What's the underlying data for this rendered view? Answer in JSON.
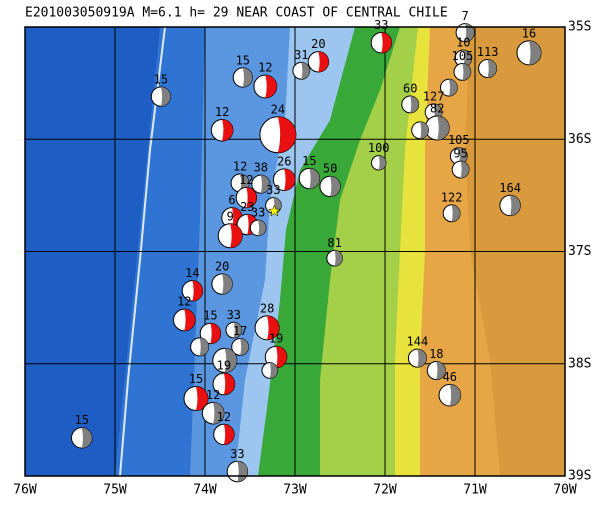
{
  "title": "E201003050919A M=6.1 h= 29 NEAR COAST OF CENTRAL CHILE",
  "map": {
    "xlim": [
      -76,
      -70
    ],
    "ylim": [
      -39,
      -35
    ],
    "xticks": [
      {
        "value": -76,
        "label": "76W"
      },
      {
        "value": -75,
        "label": "75W"
      },
      {
        "value": -74,
        "label": "74W"
      },
      {
        "value": -73,
        "label": "73W"
      },
      {
        "value": -72,
        "label": "72W"
      },
      {
        "value": -71,
        "label": "71W"
      },
      {
        "value": -70,
        "label": "70W"
      }
    ],
    "yticks": [
      {
        "value": -35,
        "label": "35S"
      },
      {
        "value": -36,
        "label": "36S"
      },
      {
        "value": -37,
        "label": "37S"
      },
      {
        "value": -38,
        "label": "38S"
      },
      {
        "value": -39,
        "label": "39S"
      }
    ],
    "grid": true,
    "epicenter": {
      "lon": -73.23,
      "lat": -36.64,
      "color": "#ffff00"
    },
    "events": [
      {
        "lon": -75.37,
        "lat": -38.66,
        "depth": 15,
        "mag": 5.7,
        "color": "#808080"
      },
      {
        "lon": -74.49,
        "lat": -35.62,
        "depth": 15,
        "mag": 5.6,
        "color": "#808080"
      },
      {
        "lon": -73.58,
        "lat": -35.45,
        "depth": 15,
        "mag": 5.6,
        "color": "#808080"
      },
      {
        "lon": -73.33,
        "lat": -35.53,
        "depth": 12,
        "mag": 5.9,
        "color": "#e81010"
      },
      {
        "lon": -72.93,
        "lat": -35.39,
        "depth": 31,
        "mag": 5.4,
        "color": "#808080"
      },
      {
        "lon": -72.74,
        "lat": -35.31,
        "depth": 20,
        "mag": 5.7,
        "color": "#e81010"
      },
      {
        "lon": -72.04,
        "lat": -35.14,
        "depth": 33,
        "mag": 5.7,
        "color": "#e81010"
      },
      {
        "lon": -71.11,
        "lat": -35.05,
        "depth": 7,
        "mag": 5.5,
        "color": "#808080"
      },
      {
        "lon": -70.4,
        "lat": -35.23,
        "depth": 16,
        "mag": 6.0,
        "color": "#808080"
      },
      {
        "lon": -70.86,
        "lat": -35.37,
        "depth": 113,
        "mag": 5.5,
        "color": "#808080"
      },
      {
        "lon": -71.13,
        "lat": -35.28,
        "depth": 10,
        "mag": 5.4,
        "color": "#808080"
      },
      {
        "lon": -71.14,
        "lat": -35.4,
        "depth": 105,
        "mag": 5.4,
        "color": "#808080"
      },
      {
        "lon": -71.29,
        "lat": -35.54,
        "depth": null,
        "mag": 5.4,
        "color": "#808080"
      },
      {
        "lon": -73.81,
        "lat": -35.92,
        "depth": 12,
        "mag": 5.8,
        "color": "#e81010"
      },
      {
        "lon": -73.19,
        "lat": -35.96,
        "depth": 24,
        "mag": 7.0,
        "color": "#e81010"
      },
      {
        "lon": -71.72,
        "lat": -35.69,
        "depth": 60,
        "mag": 5.4,
        "color": "#808080"
      },
      {
        "lon": -71.46,
        "lat": -35.76,
        "depth": 127,
        "mag": 5.4,
        "color": "#808080"
      },
      {
        "lon": -71.42,
        "lat": -35.9,
        "depth": 82,
        "mag": 6.0,
        "color": "#808080"
      },
      {
        "lon": -71.61,
        "lat": -35.92,
        "depth": null,
        "mag": 5.4,
        "color": "#808080"
      },
      {
        "lon": -71.18,
        "lat": -36.15,
        "depth": 105,
        "mag": 5.4,
        "color": "#808080"
      },
      {
        "lon": -71.16,
        "lat": -36.27,
        "depth": 95,
        "mag": 5.4,
        "color": "#808080"
      },
      {
        "lon": -72.07,
        "lat": -36.21,
        "depth": 100,
        "mag": 5.2,
        "color": "#808080"
      },
      {
        "lon": -71.26,
        "lat": -36.66,
        "depth": 122,
        "mag": 5.4,
        "color": "#808080"
      },
      {
        "lon": -70.61,
        "lat": -36.59,
        "depth": 164,
        "mag": 5.7,
        "color": "#808080"
      },
      {
        "lon": -72.84,
        "lat": -36.35,
        "depth": 15,
        "mag": 5.7,
        "color": "#808080"
      },
      {
        "lon": -72.61,
        "lat": -36.42,
        "depth": 50,
        "mag": 5.7,
        "color": "#808080"
      },
      {
        "lon": -73.12,
        "lat": -36.36,
        "depth": 26,
        "mag": 5.8,
        "color": "#e81010"
      },
      {
        "lon": -73.38,
        "lat": -36.4,
        "depth": 38,
        "mag": 5.5,
        "color": "#808080"
      },
      {
        "lon": -73.61,
        "lat": -36.39,
        "depth": 12,
        "mag": 5.5,
        "color": "#808080"
      },
      {
        "lon": -73.54,
        "lat": -36.52,
        "depth": 12,
        "mag": 5.7,
        "color": "#e81010"
      },
      {
        "lon": -73.24,
        "lat": -36.59,
        "depth": 33,
        "mag": 5.3,
        "color": "#808080"
      },
      {
        "lon": -73.7,
        "lat": -36.7,
        "depth": 6,
        "mag": 5.7,
        "color": "#e81010"
      },
      {
        "lon": -73.53,
        "lat": -36.76,
        "depth": 23,
        "mag": 5.7,
        "color": "#e81010"
      },
      {
        "lon": -73.41,
        "lat": -36.79,
        "depth": 33,
        "mag": 5.3,
        "color": "#808080"
      },
      {
        "lon": -73.72,
        "lat": -36.86,
        "depth": 9,
        "mag": 6.0,
        "color": "#e81010"
      },
      {
        "lon": -72.56,
        "lat": -37.06,
        "depth": 81,
        "mag": 5.3,
        "color": "#808080"
      },
      {
        "lon": -73.81,
        "lat": -37.29,
        "depth": 20,
        "mag": 5.7,
        "color": "#808080"
      },
      {
        "lon": -74.14,
        "lat": -37.35,
        "depth": 14,
        "mag": 5.7,
        "color": "#e81010"
      },
      {
        "lon": -74.23,
        "lat": -37.61,
        "depth": 12,
        "mag": 5.8,
        "color": "#e81010"
      },
      {
        "lon": -73.31,
        "lat": -37.68,
        "depth": 28,
        "mag": 6.0,
        "color": "#e81010"
      },
      {
        "lon": -73.94,
        "lat": -37.73,
        "depth": 15,
        "mag": 5.7,
        "color": "#e81010"
      },
      {
        "lon": -73.68,
        "lat": -37.7,
        "depth": 33,
        "mag": 5.3,
        "color": "#808080"
      },
      {
        "lon": -73.61,
        "lat": -37.85,
        "depth": 17,
        "mag": 5.4,
        "color": "#808080"
      },
      {
        "lon": -73.21,
        "lat": -37.94,
        "depth": 19,
        "mag": 5.8,
        "color": "#e81010"
      },
      {
        "lon": -74.06,
        "lat": -37.85,
        "depth": null,
        "mag": 5.5,
        "color": "#808080"
      },
      {
        "lon": -73.78,
        "lat": -37.97,
        "depth": null,
        "mag": 6.0,
        "color": "#808080"
      },
      {
        "lon": -71.64,
        "lat": -37.95,
        "depth": 144,
        "mag": 5.5,
        "color": "#808080"
      },
      {
        "lon": -71.43,
        "lat": -38.06,
        "depth": 18,
        "mag": 5.5,
        "color": "#808080"
      },
      {
        "lon": -71.28,
        "lat": -38.28,
        "depth": 46,
        "mag": 5.8,
        "color": "#808080"
      },
      {
        "lon": -73.79,
        "lat": -38.18,
        "depth": 19,
        "mag": 5.8,
        "color": "#e81010"
      },
      {
        "lon": -74.1,
        "lat": -38.31,
        "depth": 15,
        "mag": 6.0,
        "color": "#e81010"
      },
      {
        "lon": -73.91,
        "lat": -38.44,
        "depth": 12,
        "mag": 5.8,
        "color": "#808080"
      },
      {
        "lon": -73.79,
        "lat": -38.63,
        "depth": 12,
        "mag": 5.7,
        "color": "#e81010"
      },
      {
        "lon": -73.64,
        "lat": -38.96,
        "depth": 33,
        "mag": 5.7,
        "color": "#808080"
      },
      {
        "lon": -73.28,
        "lat": -38.06,
        "depth": null,
        "mag": 5.3,
        "color": "#808080"
      }
    ]
  }
}
